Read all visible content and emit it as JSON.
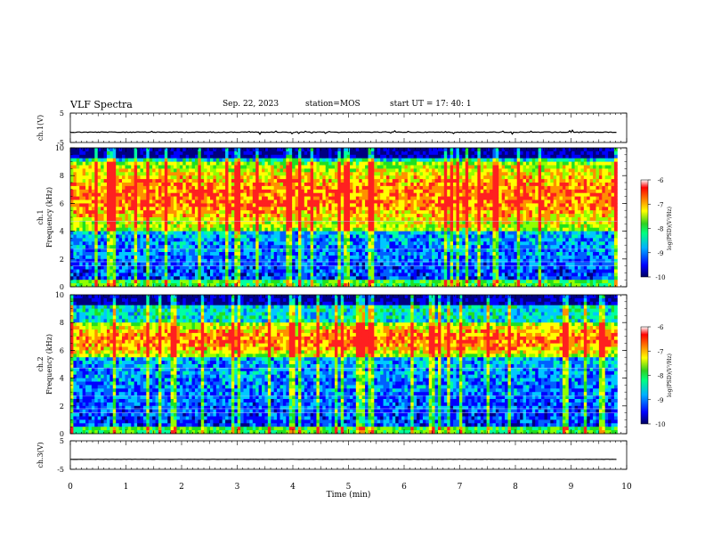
{
  "header": {
    "title": "VLF Spectra",
    "date": "Sep. 22, 2023",
    "station": "station=MOS",
    "start": "start UT =  17: 40: 1"
  },
  "colors": {
    "scale": [
      "#000080",
      "#0000ff",
      "#0060ff",
      "#00c8ff",
      "#00ffa0",
      "#20e020",
      "#90ff00",
      "#ffff00",
      "#ff9000",
      "#ff2020",
      "#ffffff"
    ]
  },
  "chart_data": [
    {
      "type": "line",
      "panel": "ch1-waveform",
      "ylabel": "ch.1(V)",
      "yticks": [
        "5",
        "-5"
      ],
      "ylim": [
        -5,
        5
      ],
      "xlim": [
        0,
        10
      ],
      "data_end_min": 9.83,
      "baseline_value": -1.5
    },
    {
      "type": "heatmap",
      "panel": "ch1-spectrogram",
      "ylabel": "ch.1\nFrequency (kHz)",
      "yticks": [
        "0",
        "2",
        "4",
        "6",
        "8",
        "10"
      ],
      "ylim": [
        0,
        10
      ],
      "xlim": [
        0,
        10
      ],
      "data_end_min": 9.83,
      "z_label": "log(PSD)(V²/Hz)",
      "z_ticks": [
        "-6",
        "-7",
        "-8",
        "-9",
        "-10"
      ],
      "zlim": [
        -10,
        -6
      ],
      "band_hot_khz": [
        4,
        9
      ]
    },
    {
      "type": "heatmap",
      "panel": "ch2-spectrogram",
      "ylabel": "ch.2\nFrequency (kHz)",
      "yticks": [
        "0",
        "2",
        "4",
        "6",
        "8",
        "10"
      ],
      "ylim": [
        0,
        10
      ],
      "xlim": [
        0,
        10
      ],
      "data_end_min": 9.83,
      "z_label": "log(PSD)(V²/Hz)",
      "z_ticks": [
        "-6",
        "-7",
        "-8",
        "-9",
        "-10"
      ],
      "zlim": [
        -10,
        -6
      ],
      "band_hot_khz": [
        5.5,
        8
      ]
    },
    {
      "type": "line",
      "panel": "ch3-waveform",
      "ylabel": "ch.3(V)",
      "yticks": [
        "5",
        "-5"
      ],
      "ylim": [
        -5,
        5
      ],
      "xlim": [
        0,
        10
      ],
      "data_end_min": 9.83,
      "baseline_value": -1.5
    }
  ],
  "xaxis": {
    "label": "Time (min)",
    "ticks": [
      "0",
      "1",
      "2",
      "3",
      "4",
      "5",
      "6",
      "7",
      "8",
      "9",
      "10"
    ]
  }
}
